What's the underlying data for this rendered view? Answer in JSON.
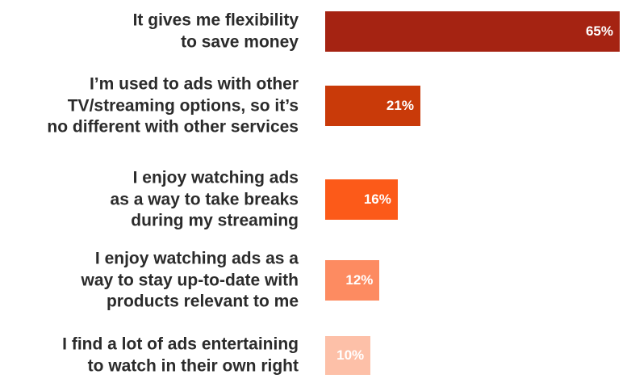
{
  "chart_data": {
    "type": "bar",
    "orientation": "horizontal",
    "categories": [
      "It gives me flexibility\nto save money",
      "I’m used to ads with other\nTV/streaming options, so it’s\nno different with other services",
      "I enjoy watching ads\nas a way to take breaks\nduring my streaming",
      "I enjoy watching ads as a\nway to stay up-to-date with\nproducts relevant to me",
      "I find a lot of ads entertaining\nto watch in their own right"
    ],
    "values": [
      65,
      21,
      16,
      12,
      10
    ],
    "value_labels": [
      "65%",
      "21%",
      "16%",
      "12%",
      "10%"
    ],
    "unit": "%",
    "xlim": [
      0,
      65
    ],
    "colors": [
      "#a52312",
      "#c93a09",
      "#fc5a19",
      "#fd8b61",
      "#fdc0a8"
    ],
    "grid": false,
    "legend": "none"
  }
}
